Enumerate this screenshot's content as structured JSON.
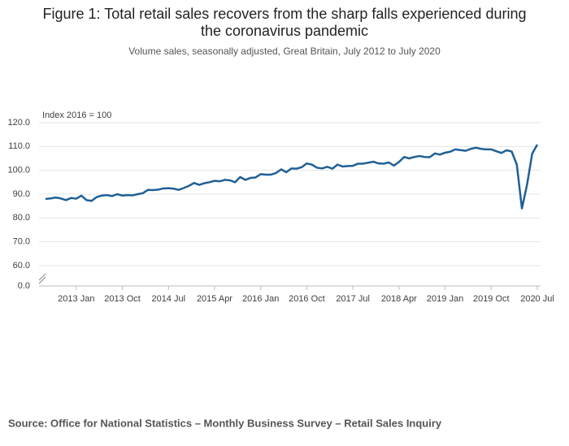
{
  "chart_data": {
    "type": "line",
    "title": "Figure 1: Total retail sales recovers from the sharp falls experienced during the coronavirus pandemic",
    "subtitle": "Volume sales, seasonally adjusted, Great Britain, July 2012 to July 2020",
    "y_label": "Index 2016 = 100",
    "source": "Source: Office for National Statistics – Monthly Business Survey – Retail Sales Inquiry",
    "x": [
      "2012-07",
      "2012-08",
      "2012-09",
      "2012-10",
      "2012-11",
      "2012-12",
      "2013-01",
      "2013-02",
      "2013-03",
      "2013-04",
      "2013-05",
      "2013-06",
      "2013-07",
      "2013-08",
      "2013-09",
      "2013-10",
      "2013-11",
      "2013-12",
      "2014-01",
      "2014-02",
      "2014-03",
      "2014-04",
      "2014-05",
      "2014-06",
      "2014-07",
      "2014-08",
      "2014-09",
      "2014-10",
      "2014-11",
      "2014-12",
      "2015-01",
      "2015-02",
      "2015-03",
      "2015-04",
      "2015-05",
      "2015-06",
      "2015-07",
      "2015-08",
      "2015-09",
      "2015-10",
      "2015-11",
      "2015-12",
      "2016-01",
      "2016-02",
      "2016-03",
      "2016-04",
      "2016-05",
      "2016-06",
      "2016-07",
      "2016-08",
      "2016-09",
      "2016-10",
      "2016-11",
      "2016-12",
      "2017-01",
      "2017-02",
      "2017-03",
      "2017-04",
      "2017-05",
      "2017-06",
      "2017-07",
      "2017-08",
      "2017-09",
      "2017-10",
      "2017-11",
      "2017-12",
      "2018-01",
      "2018-02",
      "2018-03",
      "2018-04",
      "2018-05",
      "2018-06",
      "2018-07",
      "2018-08",
      "2018-09",
      "2018-10",
      "2018-11",
      "2018-12",
      "2019-01",
      "2019-02",
      "2019-03",
      "2019-04",
      "2019-05",
      "2019-06",
      "2019-07",
      "2019-08",
      "2019-09",
      "2019-10",
      "2019-11",
      "2019-12",
      "2020-01",
      "2020-02",
      "2020-03",
      "2020-04",
      "2020-05",
      "2020-06",
      "2020-07"
    ],
    "series": [
      {
        "name": "Total retail sales",
        "color": "#206095",
        "values": [
          88.0,
          88.2,
          88.6,
          88.2,
          87.5,
          88.4,
          88.1,
          89.4,
          87.5,
          87.2,
          88.8,
          89.4,
          89.6,
          89.2,
          90.0,
          89.4,
          89.6,
          89.5,
          90.0,
          90.4,
          91.8,
          91.7,
          91.9,
          92.4,
          92.5,
          92.3,
          91.8,
          92.6,
          93.5,
          94.7,
          93.9,
          94.6,
          95.0,
          95.6,
          95.4,
          96.0,
          95.8,
          95.0,
          97.2,
          96.0,
          96.8,
          97.0,
          98.4,
          98.2,
          98.2,
          98.9,
          100.4,
          99.2,
          100.8,
          100.7,
          101.3,
          102.9,
          102.4,
          101.1,
          100.8,
          101.5,
          100.7,
          102.4,
          101.6,
          101.8,
          101.9,
          102.8,
          102.8,
          103.2,
          103.6,
          102.9,
          102.8,
          103.3,
          102.0,
          103.5,
          105.6,
          105.0,
          105.6,
          106.0,
          105.6,
          105.5,
          107.1,
          106.6,
          107.4,
          107.8,
          108.8,
          108.5,
          108.2,
          109.0,
          109.5,
          109.0,
          108.8,
          108.8,
          108.0,
          107.3,
          108.4,
          107.9,
          102.4,
          84.0,
          94.0,
          107.0,
          110.8
        ]
      }
    ],
    "ylim": [
      0,
      120
    ],
    "axis_break": [
      0,
      60
    ],
    "yticks": [
      {
        "value": 0,
        "label": "0.0"
      },
      {
        "value": 60,
        "label": "60.0"
      },
      {
        "value": 70,
        "label": "70.0"
      },
      {
        "value": 80,
        "label": "80.0"
      },
      {
        "value": 90,
        "label": "90.0"
      },
      {
        "value": 100,
        "label": "100.0"
      },
      {
        "value": 110,
        "label": "110.0"
      },
      {
        "value": 120,
        "label": "120.0"
      }
    ],
    "xticks": [
      {
        "value": "2013-01",
        "label": "2013 Jan"
      },
      {
        "value": "2013-10",
        "label": "2013 Oct"
      },
      {
        "value": "2014-07",
        "label": "2014 Jul"
      },
      {
        "value": "2015-04",
        "label": "2015 Apr"
      },
      {
        "value": "2016-01",
        "label": "2016 Jan"
      },
      {
        "value": "2016-10",
        "label": "2016 Oct"
      },
      {
        "value": "2017-07",
        "label": "2017 Jul"
      },
      {
        "value": "2018-04",
        "label": "2018 Apr"
      },
      {
        "value": "2019-01",
        "label": "2019 Jan"
      },
      {
        "value": "2019-10",
        "label": "2019 Oct"
      },
      {
        "value": "2020-07",
        "label": "2020 Jul"
      }
    ],
    "grid": true
  }
}
